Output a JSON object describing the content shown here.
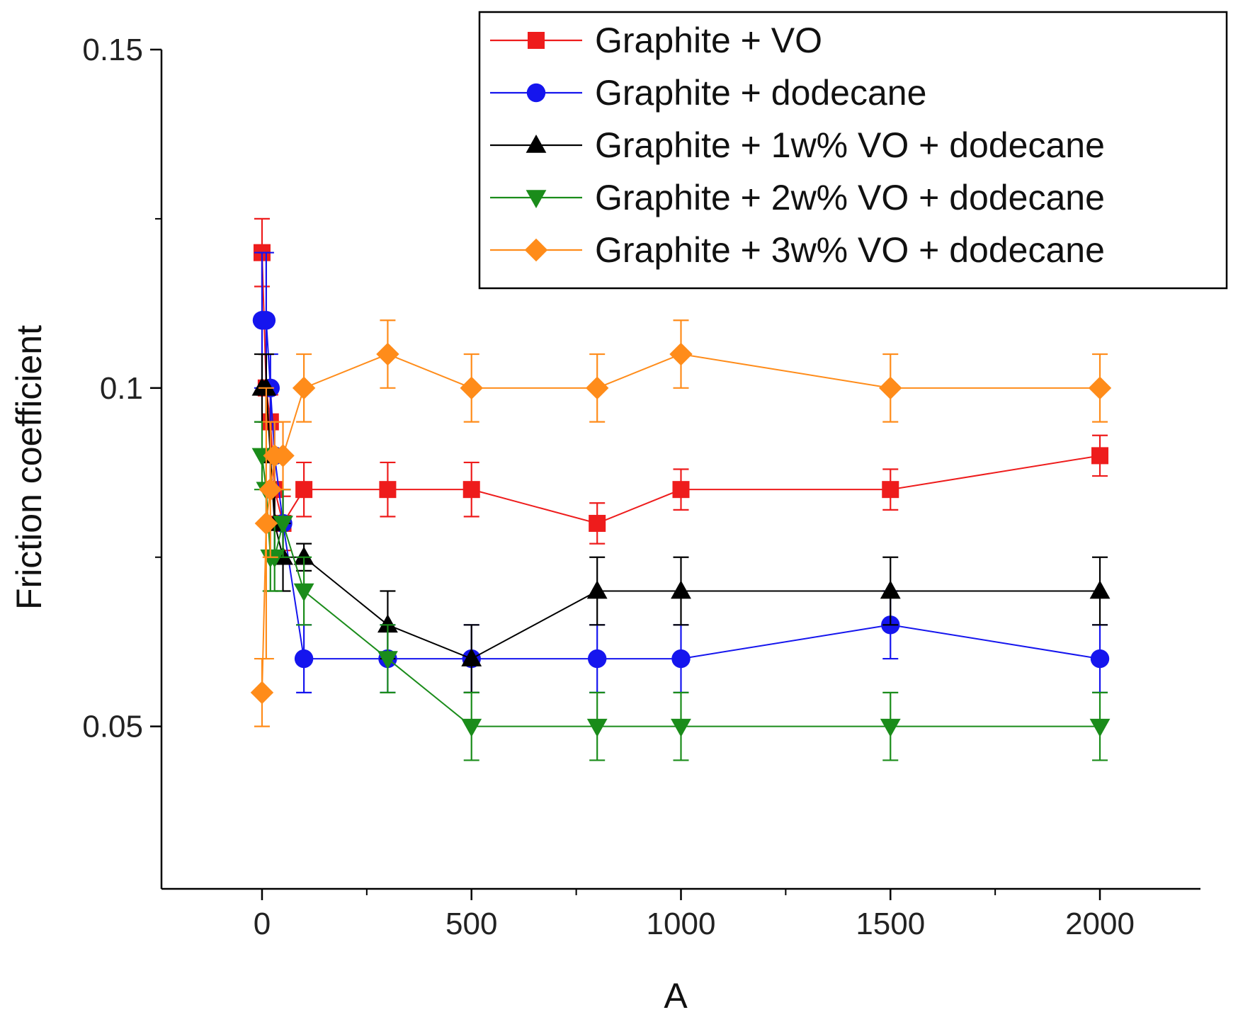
{
  "chart_data": {
    "type": "line",
    "title": "",
    "xlabel": "A",
    "ylabel": "Friction coefficient",
    "xlim": [
      -240,
      2240
    ],
    "ylim": [
      0.026,
      0.15
    ],
    "x_ticks": [
      0,
      500,
      1000,
      1500,
      2000
    ],
    "x_tick_labels": [
      "0",
      "500",
      "1000",
      "1500",
      "2000"
    ],
    "y_ticks": [
      0.05,
      0.1,
      0.15
    ],
    "y_tick_labels": [
      "0.05",
      "0.1",
      "0.15"
    ],
    "legend_position": "top-right",
    "grid": false,
    "series": [
      {
        "name": "Graphite + VO",
        "color": "#ee1c1c",
        "marker": "square",
        "x": [
          0,
          10,
          20,
          30,
          50,
          100,
          300,
          500,
          800,
          1000,
          1500,
          2000
        ],
        "y": [
          0.12,
          0.1,
          0.095,
          0.085,
          0.08,
          0.085,
          0.085,
          0.085,
          0.08,
          0.085,
          0.085,
          0.09
        ],
        "err": [
          0.005,
          0.005,
          0.004,
          0.004,
          0.004,
          0.004,
          0.004,
          0.004,
          0.003,
          0.003,
          0.003,
          0.003
        ]
      },
      {
        "name": "Graphite + dodecane",
        "color": "#1515ee",
        "marker": "circle",
        "x": [
          0,
          10,
          20,
          30,
          50,
          100,
          300,
          500,
          800,
          1000,
          1500,
          2000
        ],
        "y": [
          0.11,
          0.11,
          0.1,
          0.09,
          0.08,
          0.06,
          0.06,
          0.06,
          0.06,
          0.06,
          0.065,
          0.06
        ],
        "err": [
          0.01,
          0.01,
          0.005,
          0.005,
          0.005,
          0.005,
          0.005,
          0.005,
          0.005,
          0.005,
          0.005,
          0.005
        ]
      },
      {
        "name": "Graphite + 1w% VO + dodecane",
        "color": "#000000",
        "marker": "triangle-up",
        "x": [
          0,
          10,
          20,
          30,
          50,
          100,
          300,
          500,
          800,
          1000,
          1500,
          2000
        ],
        "y": [
          0.1,
          0.1,
          0.09,
          0.08,
          0.075,
          0.075,
          0.065,
          0.06,
          0.07,
          0.07,
          0.07,
          0.07
        ],
        "err": [
          0.005,
          0.005,
          0.005,
          0.005,
          0.005,
          0.002,
          0.005,
          0.005,
          0.005,
          0.005,
          0.005,
          0.005
        ]
      },
      {
        "name": "Graphite + 2w% VO + dodecane",
        "color": "#1a8c1a",
        "marker": "triangle-down",
        "x": [
          0,
          10,
          20,
          30,
          50,
          100,
          300,
          500,
          800,
          1000,
          1500,
          2000
        ],
        "y": [
          0.09,
          0.085,
          0.075,
          0.075,
          0.08,
          0.07,
          0.06,
          0.05,
          0.05,
          0.05,
          0.05,
          0.05
        ],
        "err": [
          0.005,
          0.005,
          0.005,
          0.005,
          0.005,
          0.005,
          0.005,
          0.005,
          0.005,
          0.005,
          0.005,
          0.005
        ]
      },
      {
        "name": "Graphite + 3w% VO + dodecane",
        "color": "#ff8c1a",
        "marker": "diamond",
        "x": [
          0,
          10,
          20,
          30,
          50,
          100,
          300,
          500,
          800,
          1000,
          1500,
          2000
        ],
        "y": [
          0.055,
          0.08,
          0.085,
          0.09,
          0.09,
          0.1,
          0.105,
          0.1,
          0.1,
          0.105,
          0.1,
          0.1
        ],
        "err": [
          0.005,
          0.02,
          0.01,
          0.005,
          0.005,
          0.005,
          0.005,
          0.005,
          0.005,
          0.005,
          0.005,
          0.005
        ]
      }
    ]
  }
}
